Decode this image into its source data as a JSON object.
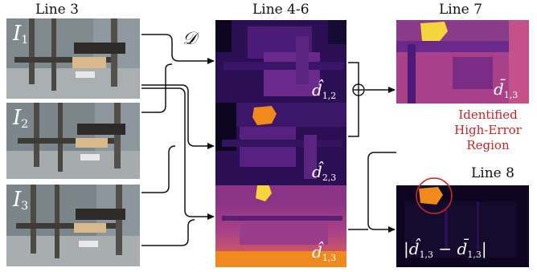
{
  "columns": {
    "c1": "Line 3",
    "c2": "Line 4-6",
    "c3": "Line 7",
    "c4": "Line 8"
  },
  "inputs": [
    {
      "sym": "I",
      "sub": "1"
    },
    {
      "sym": "I",
      "sub": "2"
    },
    {
      "sym": "I",
      "sub": "3"
    }
  ],
  "operator": "𝒟",
  "depth_maps": [
    {
      "sym": "d̂",
      "sub": "1,2"
    },
    {
      "sym": "d̂",
      "sub": "2,3"
    },
    {
      "sym": "d̂",
      "sub": "1,3"
    }
  ],
  "merged": {
    "sym": "d̄",
    "sub": "1,3"
  },
  "error": {
    "open": "|",
    "a": "d̂",
    "a_sub": "1,3",
    "minus": "−",
    "b": "d̄",
    "b_sub": "1,3",
    "close": "|"
  },
  "annotation": {
    "line1": "Identified",
    "line2": "High-Error",
    "line3": "Region"
  },
  "colors": {
    "depth_dark": "#1a0a3c",
    "depth_mid": "#6a2a8c",
    "depth_hot": "#f08a1e",
    "depth_yellow": "#f5d63a",
    "error_bg": "#0d0620",
    "annotation": "#c62828"
  }
}
